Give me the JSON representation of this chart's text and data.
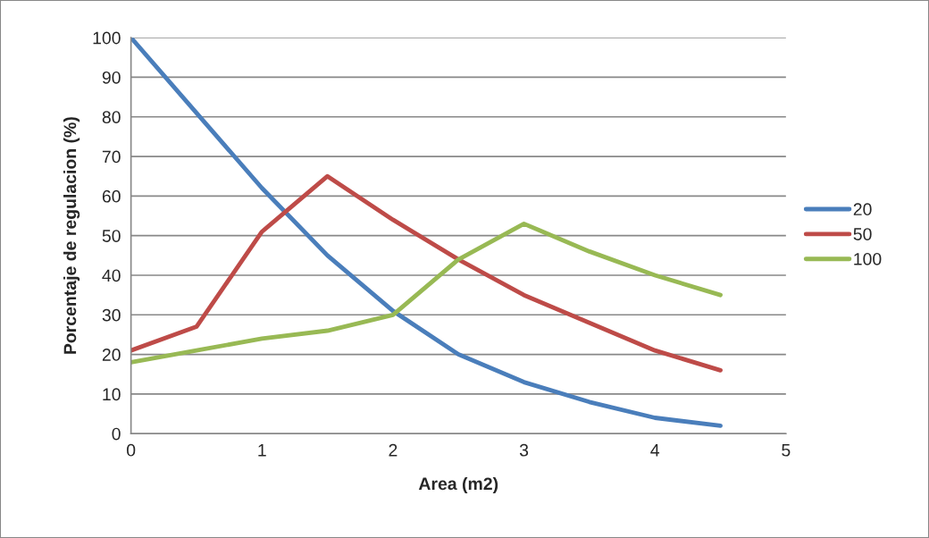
{
  "chart_data": {
    "type": "line",
    "xlabel": "Area (m2)",
    "ylabel": "Porcentaje de regulacion (%)",
    "x": [
      0,
      0.5,
      1,
      1.5,
      2,
      2.5,
      3,
      3.5,
      4,
      4.5
    ],
    "series": [
      {
        "name": "20",
        "color": "#4a7ebb",
        "values": [
          100,
          81,
          62,
          45,
          31,
          20,
          13,
          8,
          4,
          2
        ]
      },
      {
        "name": "50",
        "color": "#be4b48",
        "values": [
          21,
          27,
          51,
          65,
          54,
          44,
          35,
          28,
          21,
          16
        ]
      },
      {
        "name": "100",
        "color": "#98b954",
        "values": [
          18,
          21,
          24,
          26,
          30,
          44,
          53,
          46,
          40,
          35
        ]
      }
    ],
    "xlim": [
      0,
      5
    ],
    "xticks": [
      0,
      1,
      2,
      3,
      4,
      5
    ],
    "ylim": [
      0,
      100
    ],
    "yticks": [
      0,
      10,
      20,
      30,
      40,
      50,
      60,
      70,
      80,
      90,
      100
    ],
    "grid": "y",
    "legend": "right",
    "marker": "none",
    "line_style": "solid"
  }
}
